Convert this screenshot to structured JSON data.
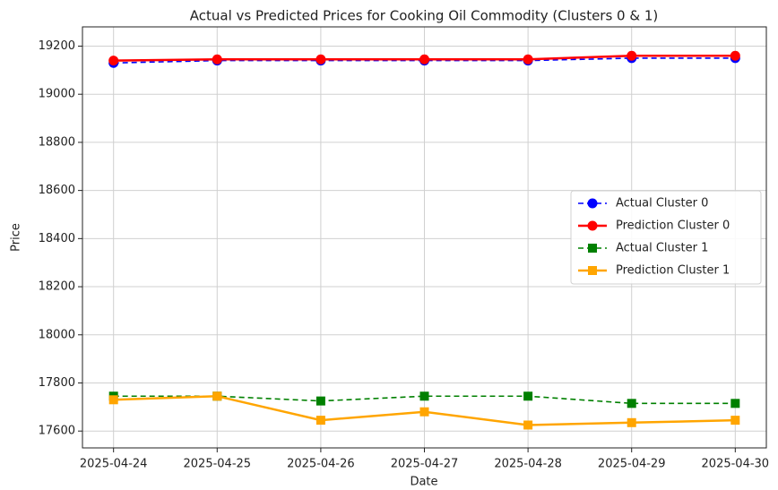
{
  "chart_data": {
    "type": "line",
    "title": "Actual vs Predicted Prices for Cooking Oil Commodity (Clusters 0 & 1)",
    "x_label": "Date",
    "y_label": "Price",
    "categories": [
      "2025-04-24",
      "2025-04-25",
      "2025-04-26",
      "2025-04-27",
      "2025-04-28",
      "2025-04-29",
      "2025-04-30"
    ],
    "series": [
      {
        "name": "Actual Cluster 0",
        "color": "#0000ff",
        "linestyle": "dashed",
        "marker": "circle",
        "values": [
          19130,
          19140,
          19140,
          19140,
          19140,
          19150,
          19150
        ]
      },
      {
        "name": "Prediction Cluster 0",
        "color": "#ff0000",
        "linestyle": "solid",
        "marker": "circle",
        "values": [
          19140,
          19145,
          19145,
          19145,
          19145,
          19160,
          19160
        ]
      },
      {
        "name": "Actual Cluster 1",
        "color": "#008000",
        "linestyle": "dashed",
        "marker": "square",
        "values": [
          17745,
          17745,
          17725,
          17745,
          17745,
          17715,
          17715
        ]
      },
      {
        "name": "Prediction Cluster 1",
        "color": "#ffa500",
        "linestyle": "solid",
        "marker": "square",
        "values": [
          17730,
          17745,
          17645,
          17680,
          17625,
          17635,
          17645
        ]
      }
    ],
    "ylim": [
      17530,
      19280
    ],
    "yticks": [
      17600,
      17800,
      18000,
      18200,
      18400,
      18600,
      18800,
      19000,
      19200
    ],
    "grid": true,
    "legend": "center right"
  }
}
